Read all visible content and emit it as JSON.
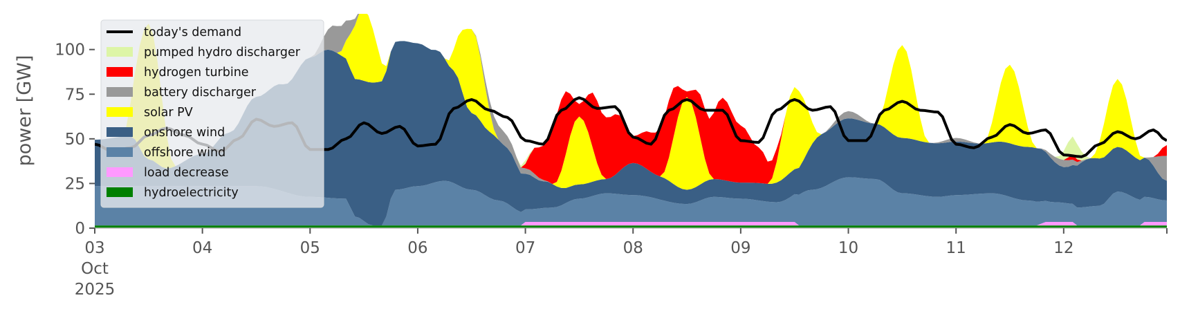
{
  "chart_data": {
    "type": "area",
    "ylabel": "power [GW]",
    "ylim": [
      0,
      120
    ],
    "y_ticks": [
      0,
      25,
      50,
      75,
      100
    ],
    "x_range": [
      "2025-10-03T00:00",
      "2025-10-12T23:00"
    ],
    "x_ticks": [
      {
        "x": "2025-10-03",
        "label": "03",
        "sub1": "Oct",
        "sub2": "2025"
      },
      {
        "x": "2025-10-04",
        "label": "04"
      },
      {
        "x": "2025-10-05",
        "label": "05"
      },
      {
        "x": "2025-10-06",
        "label": "06"
      },
      {
        "x": "2025-10-07",
        "label": "07"
      },
      {
        "x": "2025-10-08",
        "label": "08"
      },
      {
        "x": "2025-10-09",
        "label": "09"
      },
      {
        "x": "2025-10-10",
        "label": "10"
      },
      {
        "x": "2025-10-11",
        "label": "11"
      },
      {
        "x": "2025-10-12",
        "label": "12"
      }
    ],
    "grid": false,
    "legend_position": "top-left",
    "demand": {
      "name": "today's demand",
      "color": "#000000",
      "points": [
        [
          "2025-10-03T00:00",
          47
        ],
        [
          "2025-10-03T04:00",
          43
        ],
        [
          "2025-10-03T08:00",
          45
        ],
        [
          "2025-10-03T12:00",
          52
        ],
        [
          "2025-10-03T16:00",
          56
        ],
        [
          "2025-10-03T20:00",
          52
        ],
        [
          "2025-10-04T00:00",
          47
        ],
        [
          "2025-10-04T04:00",
          43
        ],
        [
          "2025-10-04T08:00",
          50
        ],
        [
          "2025-10-04T12:00",
          61
        ],
        [
          "2025-10-04T16:00",
          57
        ],
        [
          "2025-10-04T20:00",
          59
        ],
        [
          "2025-10-05T00:00",
          44
        ],
        [
          "2025-10-05T04:00",
          44
        ],
        [
          "2025-10-05T08:00",
          50
        ],
        [
          "2025-10-05T12:00",
          59
        ],
        [
          "2025-10-05T16:00",
          53
        ],
        [
          "2025-10-05T20:00",
          57
        ],
        [
          "2025-10-06T00:00",
          46
        ],
        [
          "2025-10-06T04:00",
          47
        ],
        [
          "2025-10-06T08:00",
          67
        ],
        [
          "2025-10-06T12:00",
          72
        ],
        [
          "2025-10-06T16:00",
          66
        ],
        [
          "2025-10-06T20:00",
          62
        ],
        [
          "2025-10-07T00:00",
          49
        ],
        [
          "2025-10-07T04:00",
          47
        ],
        [
          "2025-10-07T08:00",
          66
        ],
        [
          "2025-10-07T12:00",
          73
        ],
        [
          "2025-10-07T16:00",
          67
        ],
        [
          "2025-10-07T20:00",
          68
        ],
        [
          "2025-10-08T00:00",
          51
        ],
        [
          "2025-10-08T04:00",
          47
        ],
        [
          "2025-10-08T08:00",
          66
        ],
        [
          "2025-10-08T12:00",
          72
        ],
        [
          "2025-10-08T16:00",
          66
        ],
        [
          "2025-10-08T20:00",
          66
        ],
        [
          "2025-10-09T00:00",
          49
        ],
        [
          "2025-10-09T04:00",
          48
        ],
        [
          "2025-10-09T08:00",
          66
        ],
        [
          "2025-10-09T12:00",
          72
        ],
        [
          "2025-10-09T16:00",
          66
        ],
        [
          "2025-10-09T20:00",
          68
        ],
        [
          "2025-10-10T00:00",
          49
        ],
        [
          "2025-10-10T04:00",
          49
        ],
        [
          "2025-10-10T08:00",
          66
        ],
        [
          "2025-10-10T12:00",
          71
        ],
        [
          "2025-10-10T16:00",
          66
        ],
        [
          "2025-10-10T20:00",
          65
        ],
        [
          "2025-10-11T00:00",
          47
        ],
        [
          "2025-10-11T04:00",
          45
        ],
        [
          "2025-10-11T08:00",
          51
        ],
        [
          "2025-10-11T12:00",
          58
        ],
        [
          "2025-10-11T16:00",
          53
        ],
        [
          "2025-10-11T20:00",
          55
        ],
        [
          "2025-10-12T00:00",
          41
        ],
        [
          "2025-10-12T04:00",
          40
        ],
        [
          "2025-10-12T08:00",
          47
        ],
        [
          "2025-10-12T12:00",
          54
        ],
        [
          "2025-10-12T16:00",
          50
        ],
        [
          "2025-10-12T20:00",
          55
        ],
        [
          "2025-10-12T23:00",
          49
        ]
      ]
    },
    "stack": [
      {
        "name": "hydroelectricity",
        "color": "#008000",
        "points": [
          [
            "2025-10-03T00:00",
            1.5
          ],
          [
            "2025-10-07T00:00",
            1.5
          ],
          [
            "2025-10-12T23:00",
            1.5
          ]
        ]
      },
      {
        "name": "load decrease",
        "color": "#ff99ff",
        "points": [
          [
            "2025-10-03T00:00",
            0
          ],
          [
            "2025-10-06T23:00",
            0
          ],
          [
            "2025-10-07T00:00",
            2
          ],
          [
            "2025-10-09T12:00",
            2
          ],
          [
            "2025-10-09T13:00",
            0
          ],
          [
            "2025-10-11T18:00",
            0
          ],
          [
            "2025-10-11T20:00",
            2
          ],
          [
            "2025-10-12T02:00",
            2
          ],
          [
            "2025-10-12T03:00",
            0
          ],
          [
            "2025-10-12T17:00",
            0
          ],
          [
            "2025-10-12T18:00",
            2
          ],
          [
            "2025-10-12T23:00",
            2
          ]
        ]
      },
      {
        "name": "offshore wind",
        "color": "#5b82a6",
        "points": [
          [
            "2025-10-03T00:00",
            22
          ],
          [
            "2025-10-03T12:00",
            22
          ],
          [
            "2025-10-04T00:00",
            22
          ],
          [
            "2025-10-04T12:00",
            22
          ],
          [
            "2025-10-05T00:00",
            16
          ],
          [
            "2025-10-05T08:00",
            15
          ],
          [
            "2025-10-05T10:00",
            5
          ],
          [
            "2025-10-05T14:00",
            0
          ],
          [
            "2025-10-05T16:00",
            0
          ],
          [
            "2025-10-05T19:00",
            20
          ],
          [
            "2025-10-06T00:00",
            22
          ],
          [
            "2025-10-06T06:00",
            25
          ],
          [
            "2025-10-06T12:00",
            20
          ],
          [
            "2025-10-06T18:00",
            14
          ],
          [
            "2025-10-07T00:00",
            7
          ],
          [
            "2025-10-07T06:00",
            8
          ],
          [
            "2025-10-07T12:00",
            13
          ],
          [
            "2025-10-07T18:00",
            16
          ],
          [
            "2025-10-08T00:00",
            15
          ],
          [
            "2025-10-08T12:00",
            10
          ],
          [
            "2025-10-08T18:00",
            14
          ],
          [
            "2025-10-09T00:00",
            13
          ],
          [
            "2025-10-09T08:00",
            11
          ],
          [
            "2025-10-09T16:00",
            20
          ],
          [
            "2025-10-10T00:00",
            27
          ],
          [
            "2025-10-10T06:00",
            26
          ],
          [
            "2025-10-10T12:00",
            18
          ],
          [
            "2025-10-10T20:00",
            16
          ],
          [
            "2025-10-11T00:00",
            17
          ],
          [
            "2025-10-11T08:00",
            18
          ],
          [
            "2025-10-11T16:00",
            14
          ],
          [
            "2025-10-11T22:00",
            11
          ],
          [
            "2025-10-12T03:00",
            10
          ],
          [
            "2025-10-12T08:00",
            11
          ],
          [
            "2025-10-12T12:00",
            19
          ],
          [
            "2025-10-12T18:00",
            14
          ],
          [
            "2025-10-12T23:00",
            12
          ]
        ]
      },
      {
        "name": "onshore wind",
        "color": "#3a5f85",
        "points": [
          [
            "2025-10-03T00:00",
            26
          ],
          [
            "2025-10-03T08:00",
            28
          ],
          [
            "2025-10-03T12:00",
            15
          ],
          [
            "2025-10-03T16:00",
            10
          ],
          [
            "2025-10-04T00:00",
            18
          ],
          [
            "2025-10-04T06:00",
            30
          ],
          [
            "2025-10-04T12:00",
            50
          ],
          [
            "2025-10-04T18:00",
            60
          ],
          [
            "2025-10-05T00:00",
            78
          ],
          [
            "2025-10-05T04:00",
            83
          ],
          [
            "2025-10-05T10:00",
            77
          ],
          [
            "2025-10-05T14:00",
            80
          ],
          [
            "2025-10-05T20:00",
            83
          ],
          [
            "2025-10-06T00:00",
            80
          ],
          [
            "2025-10-06T04:00",
            74
          ],
          [
            "2025-10-06T08:00",
            63
          ],
          [
            "2025-10-06T12:00",
            43
          ],
          [
            "2025-10-06T16:00",
            37
          ],
          [
            "2025-10-06T20:00",
            31
          ],
          [
            "2025-10-07T00:00",
            20
          ],
          [
            "2025-10-07T04:00",
            15
          ],
          [
            "2025-10-07T10:00",
            8
          ],
          [
            "2025-10-07T18:00",
            8
          ],
          [
            "2025-10-08T00:00",
            18
          ],
          [
            "2025-10-08T06:00",
            13
          ],
          [
            "2025-10-08T12:00",
            8
          ],
          [
            "2025-10-08T18:00",
            10
          ],
          [
            "2025-10-09T00:00",
            9
          ],
          [
            "2025-10-09T06:00",
            10
          ],
          [
            "2025-10-09T12:00",
            14
          ],
          [
            "2025-10-09T18:00",
            30
          ],
          [
            "2025-10-10T00:00",
            33
          ],
          [
            "2025-10-10T06:00",
            31
          ],
          [
            "2025-10-10T12:00",
            31
          ],
          [
            "2025-10-10T18:00",
            30
          ],
          [
            "2025-10-11T00:00",
            30
          ],
          [
            "2025-10-11T06:00",
            28
          ],
          [
            "2025-10-11T12:00",
            30
          ],
          [
            "2025-10-11T18:00",
            30
          ],
          [
            "2025-10-12T00:00",
            20
          ],
          [
            "2025-10-12T06:00",
            27
          ],
          [
            "2025-10-12T12:00",
            25
          ],
          [
            "2025-10-12T18:00",
            22
          ],
          [
            "2025-10-12T23:00",
            11
          ]
        ]
      },
      {
        "name": "solar PV",
        "color": "#ffff00",
        "points": [
          [
            "2025-10-03T00:00",
            0
          ],
          [
            "2025-10-03T06:00",
            0
          ],
          [
            "2025-10-03T12:00",
            76
          ],
          [
            "2025-10-03T18:00",
            0
          ],
          [
            "2025-10-04T06:00",
            0
          ],
          [
            "2025-10-04T12:00",
            0
          ],
          [
            "2025-10-04T18:00",
            0
          ],
          [
            "2025-10-05T06:00",
            0
          ],
          [
            "2025-10-05T12:00",
            40
          ],
          [
            "2025-10-05T18:00",
            0
          ],
          [
            "2025-10-06T06:00",
            0
          ],
          [
            "2025-10-06T12:00",
            47
          ],
          [
            "2025-10-06T18:00",
            0
          ],
          [
            "2025-10-07T06:00",
            0
          ],
          [
            "2025-10-07T12:00",
            38
          ],
          [
            "2025-10-07T18:00",
            0
          ],
          [
            "2025-10-08T06:00",
            0
          ],
          [
            "2025-10-08T12:00",
            52
          ],
          [
            "2025-10-08T18:00",
            0
          ],
          [
            "2025-10-09T06:00",
            0
          ],
          [
            "2025-10-09T12:00",
            46
          ],
          [
            "2025-10-09T18:00",
            0
          ],
          [
            "2025-10-10T06:00",
            0
          ],
          [
            "2025-10-10T12:00",
            52
          ],
          [
            "2025-10-10T18:00",
            0
          ],
          [
            "2025-10-11T06:00",
            0
          ],
          [
            "2025-10-11T12:00",
            44
          ],
          [
            "2025-10-11T18:00",
            0
          ],
          [
            "2025-10-12T06:00",
            0
          ],
          [
            "2025-10-12T12:00",
            38
          ],
          [
            "2025-10-12T18:00",
            0
          ],
          [
            "2025-10-12T23:00",
            0
          ]
        ]
      },
      {
        "name": "battery discharger",
        "color": "#999999",
        "points": [
          [
            "2025-10-03T00:00",
            0
          ],
          [
            "2025-10-05T00:00",
            0
          ],
          [
            "2025-10-05T06:00",
            15
          ],
          [
            "2025-10-05T12:00",
            0
          ],
          [
            "2025-10-06T12:00",
            0
          ],
          [
            "2025-10-06T18:00",
            8
          ],
          [
            "2025-10-07T00:00",
            3
          ],
          [
            "2025-10-07T06:00",
            0
          ],
          [
            "2025-10-09T18:00",
            0
          ],
          [
            "2025-10-10T00:00",
            4
          ],
          [
            "2025-10-10T06:00",
            0
          ],
          [
            "2025-10-10T18:00",
            0
          ],
          [
            "2025-10-11T00:00",
            2
          ],
          [
            "2025-10-11T06:00",
            0
          ],
          [
            "2025-10-11T18:00",
            0
          ],
          [
            "2025-10-12T00:00",
            4
          ],
          [
            "2025-10-12T06:00",
            0
          ],
          [
            "2025-10-12T18:00",
            0
          ],
          [
            "2025-10-12T23:00",
            14
          ]
        ]
      },
      {
        "name": "hydrogen turbine",
        "color": "#ff0000",
        "points": [
          [
            "2025-10-03T00:00",
            0
          ],
          [
            "2025-10-06T23:00",
            0
          ],
          [
            "2025-10-07T03:00",
            17
          ],
          [
            "2025-10-07T08:00",
            40
          ],
          [
            "2025-10-07T12:00",
            7
          ],
          [
            "2025-10-07T16:00",
            35
          ],
          [
            "2025-10-07T20:00",
            34
          ],
          [
            "2025-10-08T00:00",
            15
          ],
          [
            "2025-10-08T04:00",
            22
          ],
          [
            "2025-10-08T08:00",
            32
          ],
          [
            "2025-10-08T12:00",
            3
          ],
          [
            "2025-10-08T16:00",
            28
          ],
          [
            "2025-10-08T20:00",
            46
          ],
          [
            "2025-10-09T00:00",
            32
          ],
          [
            "2025-10-09T04:00",
            20
          ],
          [
            "2025-10-09T07:00",
            10
          ],
          [
            "2025-10-09T10:00",
            0
          ],
          [
            "2025-10-12T00:00",
            0
          ],
          [
            "2025-10-12T02:00",
            3
          ],
          [
            "2025-10-12T04:00",
            0
          ],
          [
            "2025-10-12T20:00",
            0
          ],
          [
            "2025-10-12T23:00",
            6
          ]
        ]
      },
      {
        "name": "pumped hydro discharger",
        "color": "#ddf5a6",
        "points": [
          [
            "2025-10-03T00:00",
            0
          ],
          [
            "2025-10-06T22:00",
            0
          ],
          [
            "2025-10-07T00:00",
            2
          ],
          [
            "2025-10-07T02:00",
            0
          ],
          [
            "2025-10-11T22:00",
            0
          ],
          [
            "2025-10-12T02:00",
            10
          ],
          [
            "2025-10-12T06:00",
            0
          ],
          [
            "2025-10-12T23:00",
            0
          ]
        ]
      }
    ]
  }
}
